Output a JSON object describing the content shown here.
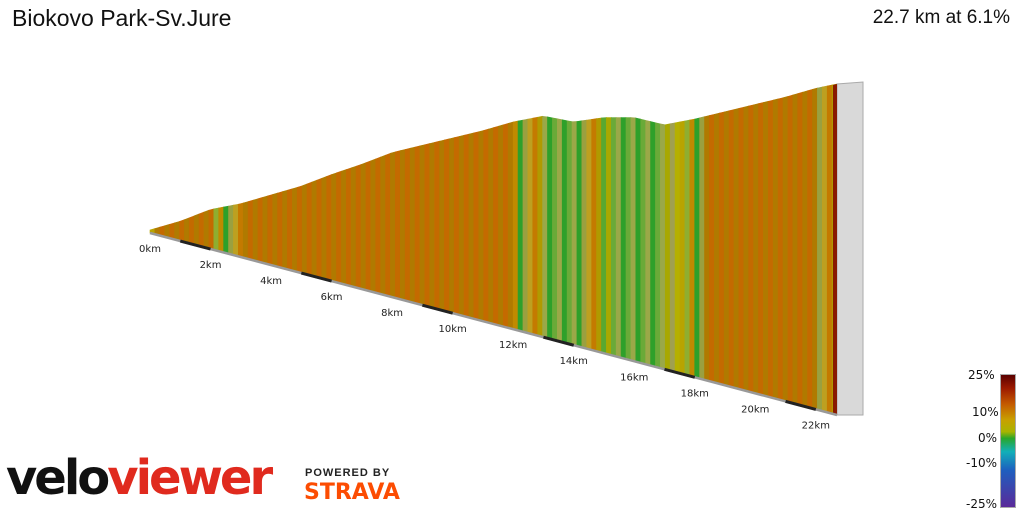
{
  "title": "Biokovo Park-Sv.Jure",
  "summary": "22.7 km at 6.1%",
  "brand": {
    "part1": "velo",
    "part2": "viewer",
    "powered": "POWERED BY",
    "strava": "STRAVA"
  },
  "colors": {
    "brand_red": "#e02a1e",
    "strava_orange": "#fc4c02"
  },
  "legend": {
    "ticks": [
      "25%",
      "10%",
      "0%",
      "-10%",
      "-25%"
    ]
  },
  "chart_data": {
    "type": "area",
    "title": "Biokovo Park-Sv.Jure",
    "distance_km": 22.7,
    "avg_gradient_pct": 6.1,
    "x_tick_labels": [
      "0km",
      "2km",
      "4km",
      "6km",
      "8km",
      "10km",
      "12km",
      "14km",
      "16km",
      "18km",
      "20km",
      "22km"
    ],
    "x": [
      0,
      1,
      2,
      3,
      4,
      5,
      6,
      7,
      8,
      9,
      10,
      11,
      12,
      13,
      14,
      15,
      16,
      17,
      18,
      19,
      20,
      21,
      22,
      22.7
    ],
    "relative_height": [
      0.0,
      0.06,
      0.14,
      0.18,
      0.24,
      0.3,
      0.38,
      0.45,
      0.53,
      0.58,
      0.63,
      0.68,
      0.74,
      0.78,
      0.74,
      0.77,
      0.77,
      0.72,
      0.76,
      0.81,
      0.86,
      0.91,
      0.97,
      1.0
    ],
    "gradient_scale": [
      "25%",
      "10%",
      "0%",
      "-10%",
      "-25%"
    ]
  }
}
